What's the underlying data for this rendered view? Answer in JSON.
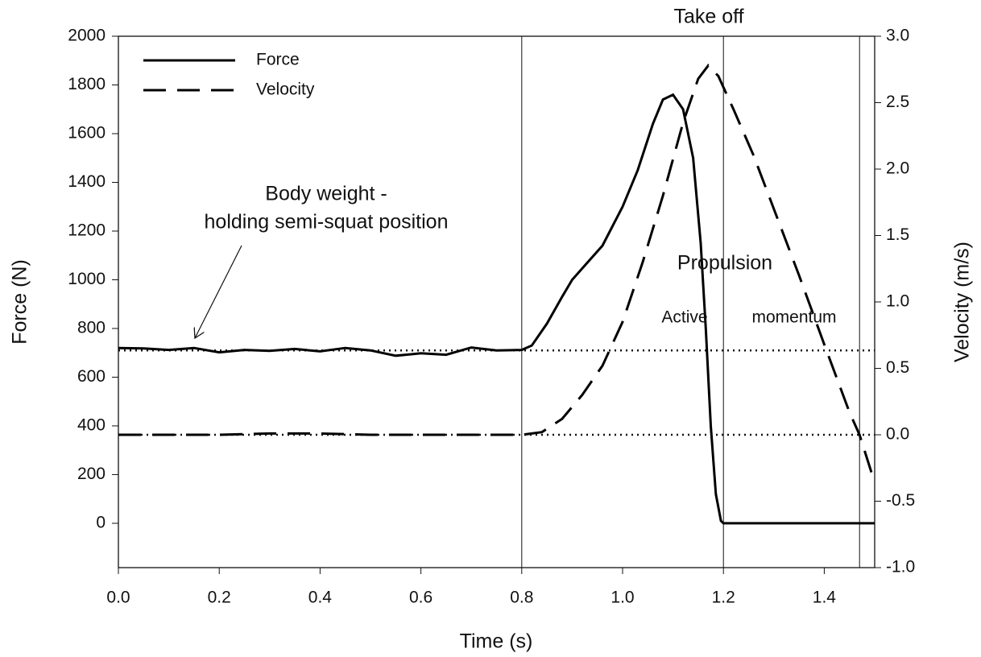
{
  "chart_data": {
    "type": "line",
    "xlabel": "Time (s)",
    "ylabel": "Force (N)",
    "y2label": "Velocity (m/s)",
    "xlim": [
      0,
      1.5
    ],
    "ylim": [
      -182,
      2000
    ],
    "y2lim": [
      -1,
      3
    ],
    "xticks": [
      {
        "value": 0,
        "label": "0.0"
      },
      0.2,
      0.4,
      0.6,
      0.8,
      {
        "value": 1,
        "label": "1.0"
      },
      1.2,
      1.4
    ],
    "yticks": [
      0,
      200,
      400,
      600,
      800,
      1000,
      1200,
      1400,
      1600,
      1800,
      2000
    ],
    "y2ticks": [
      {
        "value": -1,
        "label": "-1.0"
      },
      -0.5,
      {
        "value": 0,
        "label": "0.0"
      },
      0.5,
      {
        "value": 1,
        "label": "1.0"
      },
      1.5,
      {
        "value": 2,
        "label": "2.0"
      },
      2.5,
      {
        "value": 3,
        "label": "3.0"
      }
    ],
    "legend": "upper left",
    "series": [
      {
        "name": "Force",
        "color": "#000000",
        "dash": false,
        "x": [
          0,
          0.05,
          0.1,
          0.15,
          0.2,
          0.25,
          0.3,
          0.35,
          0.4,
          0.45,
          0.5,
          0.55,
          0.6,
          0.65,
          0.7,
          0.75,
          0.8,
          0.82,
          0.85,
          0.88,
          0.9,
          0.93,
          0.96,
          1.0,
          1.03,
          1.06,
          1.08,
          1.1,
          1.12,
          1.14,
          1.155,
          1.165,
          1.175,
          1.185,
          1.195,
          1.2,
          1.5
        ],
        "values": [
          720,
          718,
          712,
          720,
          702,
          712,
          708,
          716,
          706,
          720,
          710,
          688,
          698,
          692,
          722,
          710,
          712,
          730,
          820,
          930,
          1000,
          1070,
          1140,
          1300,
          1450,
          1640,
          1740,
          1760,
          1700,
          1500,
          1150,
          800,
          400,
          120,
          10,
          0,
          0
        ]
      },
      {
        "name": "Velocity",
        "color": "#000000",
        "dash": true,
        "axis": "y2",
        "x": [
          0,
          0.1,
          0.2,
          0.3,
          0.4,
          0.5,
          0.6,
          0.7,
          0.8,
          0.84,
          0.88,
          0.92,
          0.96,
          1.0,
          1.04,
          1.08,
          1.12,
          1.15,
          1.17,
          1.19,
          1.22,
          1.26,
          1.3,
          1.35,
          1.4,
          1.45,
          1.47,
          1.5
        ],
        "values": [
          0,
          0,
          0,
          0.01,
          0.01,
          0,
          0,
          0,
          0,
          0.02,
          0.12,
          0.3,
          0.52,
          0.85,
          1.3,
          1.8,
          2.35,
          2.68,
          2.78,
          2.7,
          2.45,
          2.1,
          1.7,
          1.2,
          0.68,
          0.17,
          0,
          -0.36
        ]
      }
    ],
    "reference_lines": {
      "x": [
        0.8,
        1.2,
        1.47
      ],
      "y": [
        710
      ],
      "y2": [
        0
      ]
    },
    "annotations": [
      "Take off",
      "Body weight -",
      "holding semi-squat position",
      "Propulsion",
      "Active",
      "momentum"
    ]
  }
}
